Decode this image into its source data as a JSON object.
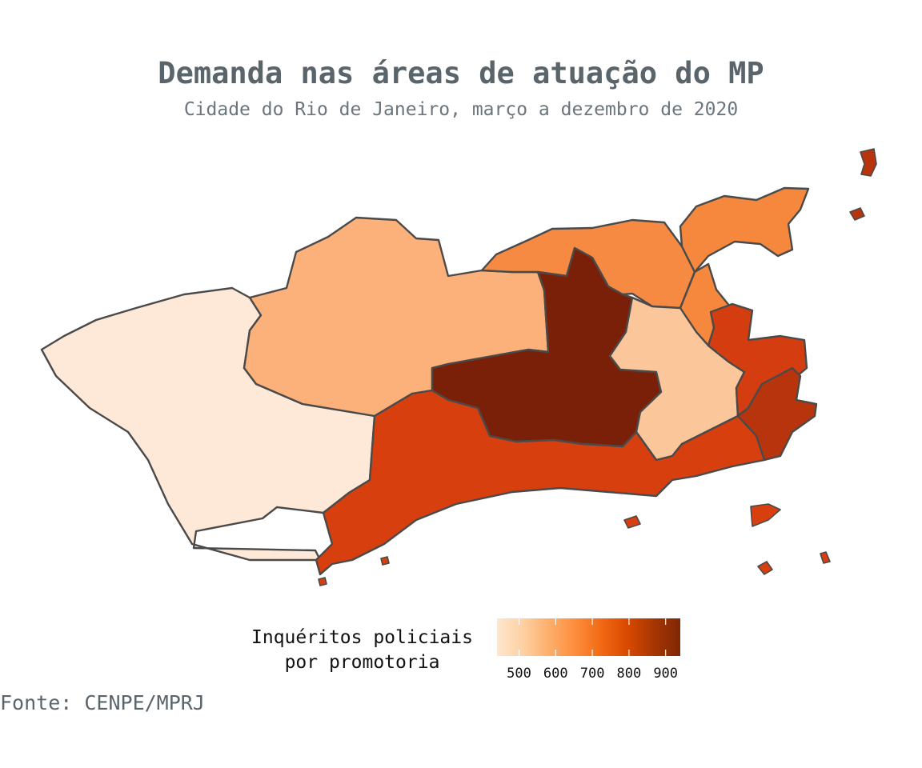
{
  "title": "Demanda nas áreas de atuação do MP",
  "subtitle": "Cidade do Rio de Janeiro, março a dezembro de 2020",
  "legend": {
    "title_line1": "Inquéritos policiais",
    "title_line2": "por promotoria",
    "ticks": [
      "500",
      "600",
      "700",
      "800",
      "900"
    ],
    "tick_values": [
      500,
      600,
      700,
      800,
      900
    ],
    "range": [
      440,
      940
    ],
    "colors": [
      "#fee6ce",
      "#fdd0a2",
      "#fdae6b",
      "#fd8d3c",
      "#f16913",
      "#d94801",
      "#a63603",
      "#7f2704"
    ]
  },
  "regions": [
    {
      "name": "west-zone-region",
      "value": 470,
      "color": "#fee9d8"
    },
    {
      "name": "jacarepagua-west-region",
      "value": 610,
      "color": "#fbb179"
    },
    {
      "name": "north-band-region",
      "value": 720,
      "color": "#f78a42"
    },
    {
      "name": "north-east-region",
      "value": 730,
      "color": "#f6883d"
    },
    {
      "name": "central-region",
      "value": 930,
      "color": "#7a2008"
    },
    {
      "name": "barra-coast-region",
      "value": 810,
      "color": "#d83f0f"
    },
    {
      "name": "tijuca-region",
      "value": 560,
      "color": "#fbc699"
    },
    {
      "name": "center-region",
      "value": 820,
      "color": "#d43d10"
    },
    {
      "name": "south-zone-region",
      "value": 880,
      "color": "#b7340d"
    }
  ],
  "caption": "Fonte: CENPE/MPRJ"
}
